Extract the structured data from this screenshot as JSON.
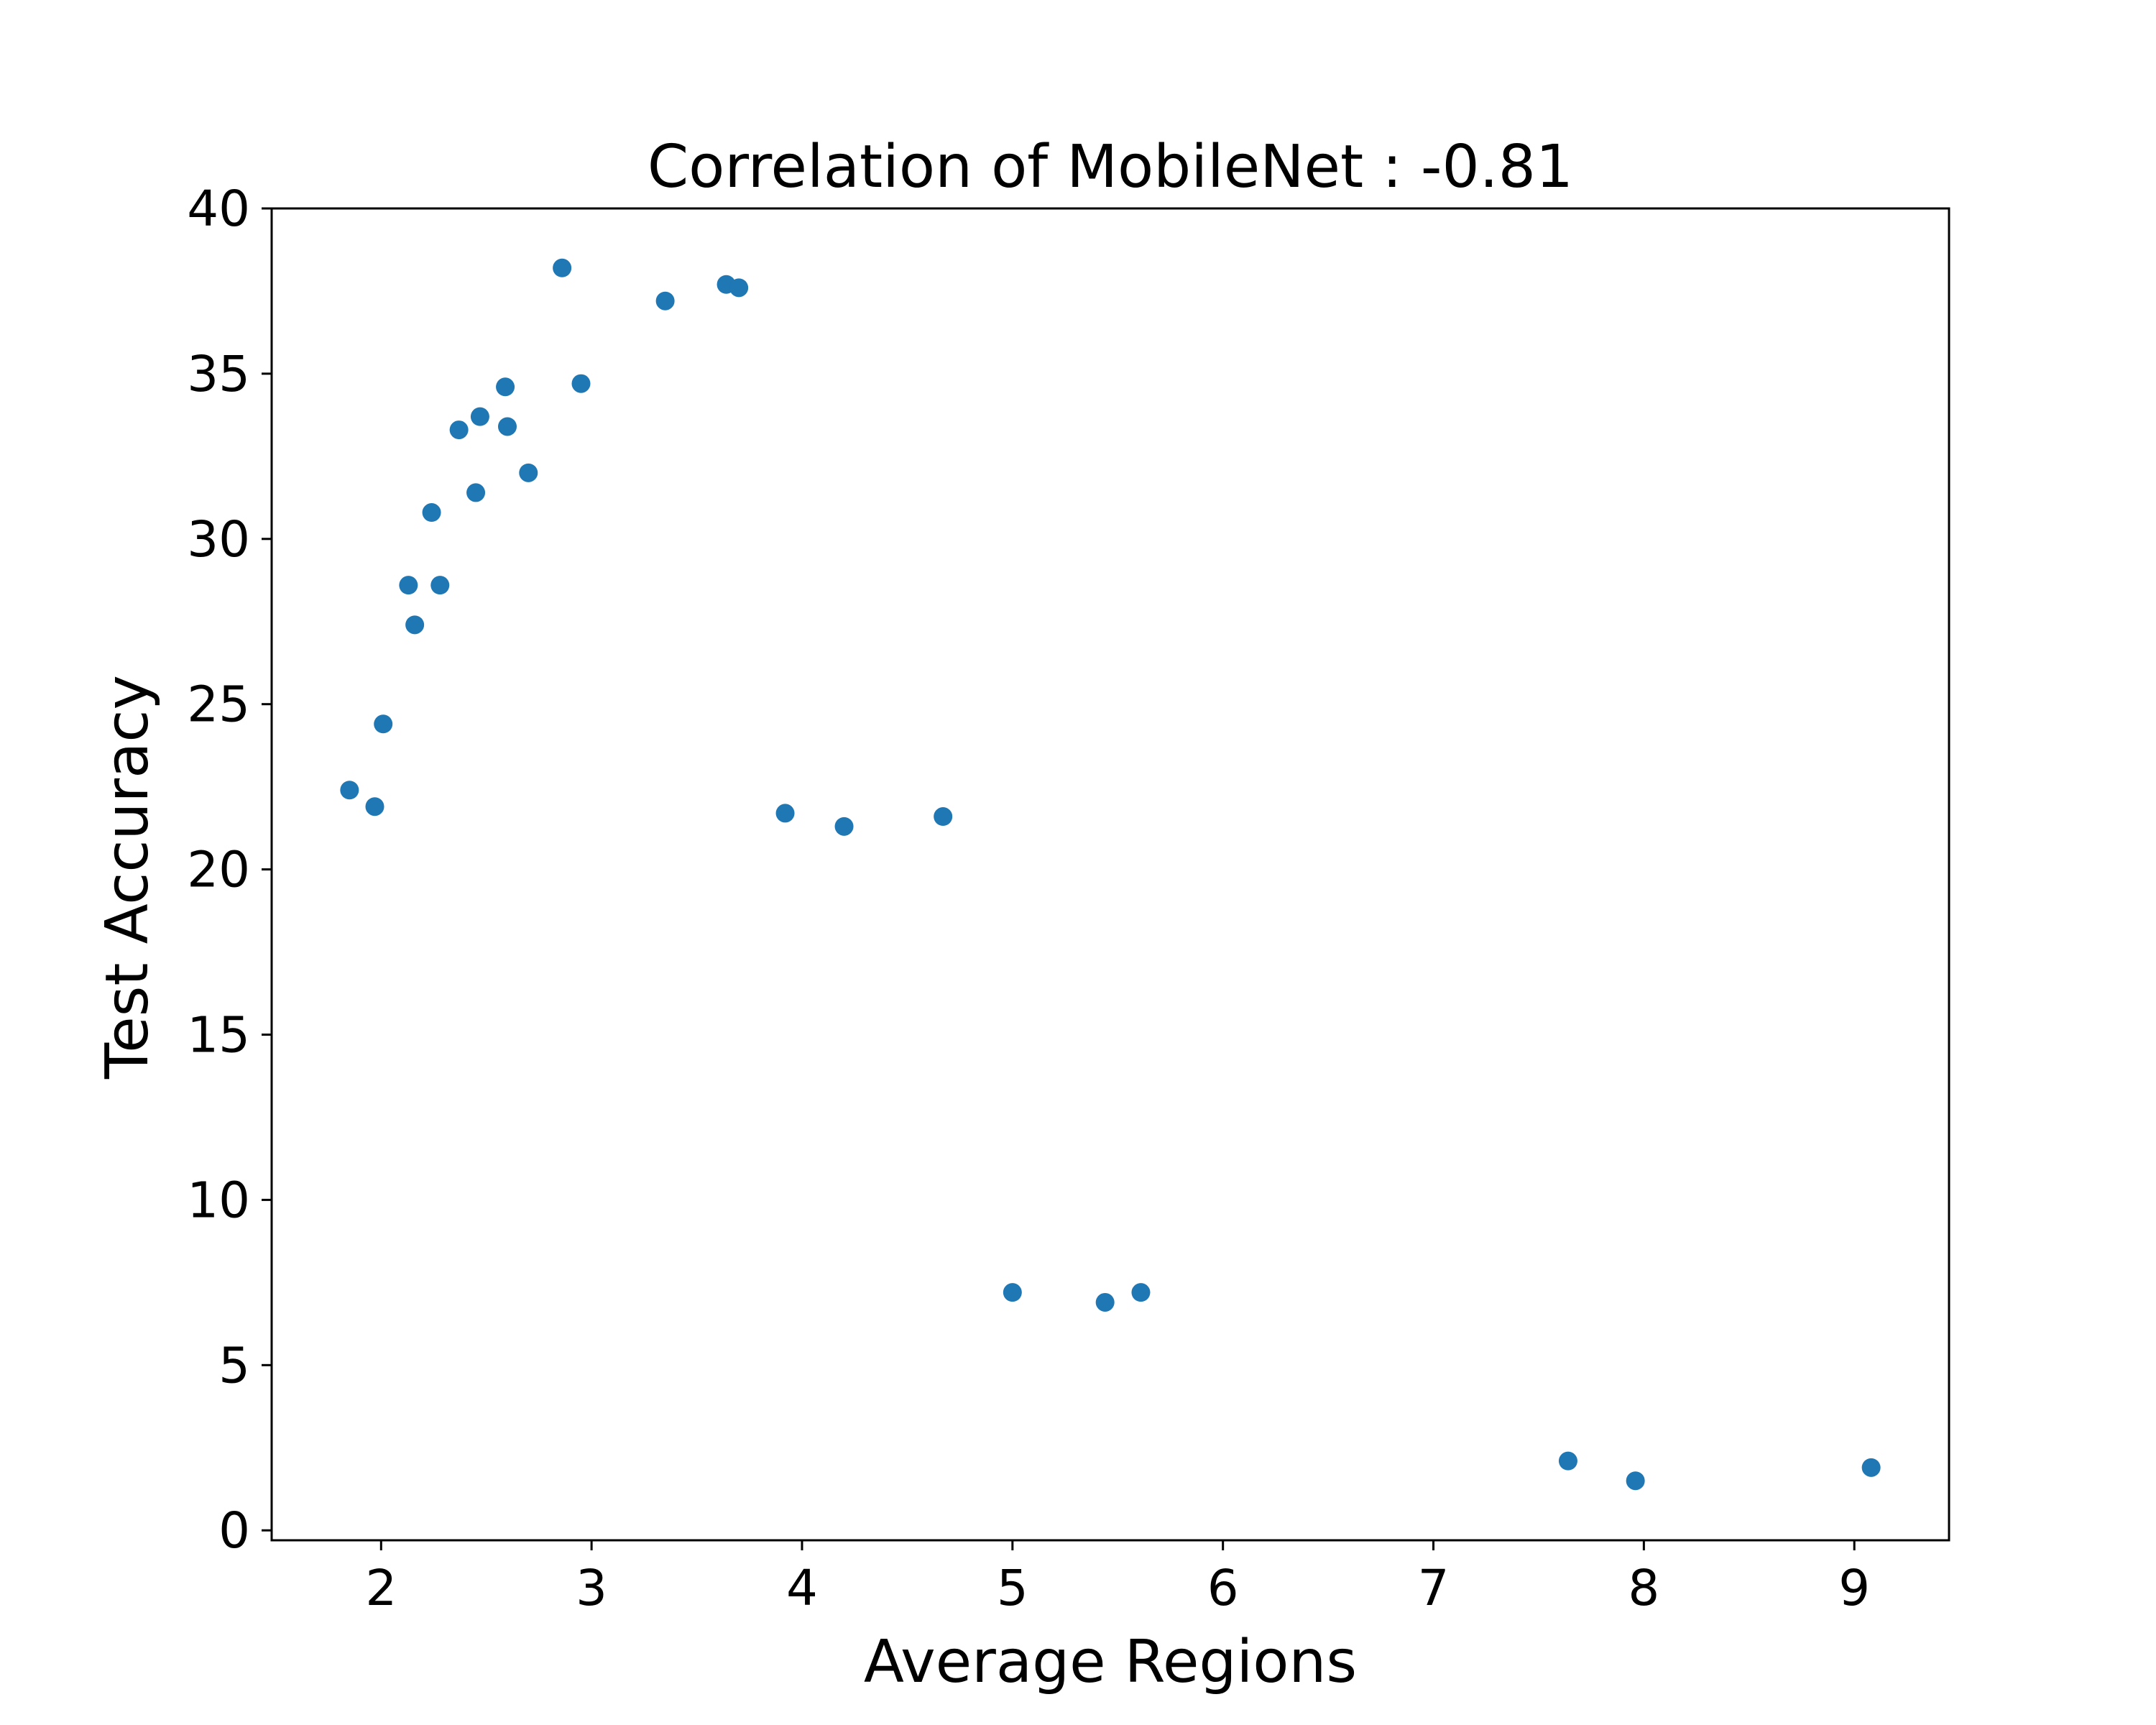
{
  "chart_data": {
    "type": "scatter",
    "title": "Correlation of MobileNet : -0.81",
    "xlabel": "Average Regions",
    "ylabel": "Test Accuracy",
    "xlim": [
      1.48,
      9.45
    ],
    "ylim": [
      -0.3,
      40
    ],
    "xticks": [
      "2",
      "3",
      "4",
      "5",
      "6",
      "7",
      "8",
      "9"
    ],
    "yticks": [
      "0",
      "5",
      "10",
      "15",
      "20",
      "25",
      "30",
      "35",
      "40"
    ],
    "grid": false,
    "legend": "none",
    "marker_color": "#1f77b4",
    "points": [
      {
        "x": 1.85,
        "y": 22.4
      },
      {
        "x": 1.97,
        "y": 21.9
      },
      {
        "x": 2.01,
        "y": 24.4
      },
      {
        "x": 2.13,
        "y": 28.6
      },
      {
        "x": 2.16,
        "y": 27.4
      },
      {
        "x": 2.24,
        "y": 30.8
      },
      {
        "x": 2.28,
        "y": 28.6
      },
      {
        "x": 2.37,
        "y": 33.3
      },
      {
        "x": 2.45,
        "y": 31.4
      },
      {
        "x": 2.47,
        "y": 33.7
      },
      {
        "x": 2.59,
        "y": 34.6
      },
      {
        "x": 2.6,
        "y": 33.4
      },
      {
        "x": 2.7,
        "y": 32.0
      },
      {
        "x": 2.86,
        "y": 38.2
      },
      {
        "x": 2.95,
        "y": 34.7
      },
      {
        "x": 3.35,
        "y": 37.2
      },
      {
        "x": 3.64,
        "y": 37.7
      },
      {
        "x": 3.7,
        "y": 37.6
      },
      {
        "x": 3.92,
        "y": 21.7
      },
      {
        "x": 4.2,
        "y": 21.3
      },
      {
        "x": 4.67,
        "y": 21.6
      },
      {
        "x": 5.0,
        "y": 7.2
      },
      {
        "x": 5.44,
        "y": 6.9
      },
      {
        "x": 5.61,
        "y": 7.2
      },
      {
        "x": 7.64,
        "y": 2.1
      },
      {
        "x": 7.96,
        "y": 1.5
      },
      {
        "x": 9.08,
        "y": 1.9
      }
    ]
  }
}
